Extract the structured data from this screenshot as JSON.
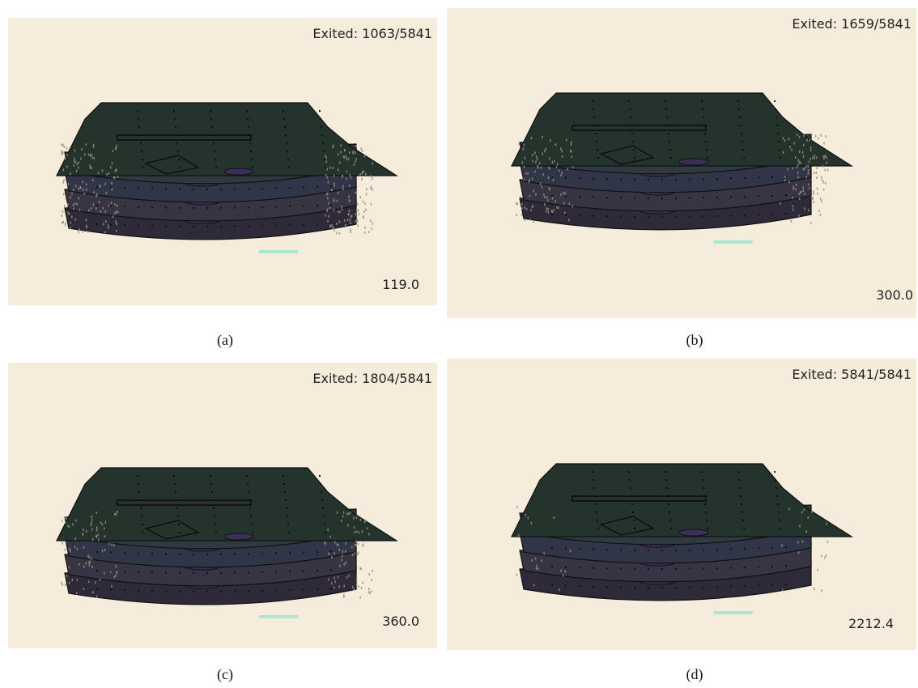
{
  "panels": [
    {
      "id": "a",
      "exited_label": "Exited:",
      "exited_count": "1063/5841",
      "time": "119.0",
      "caption": "(a)"
    },
    {
      "id": "b",
      "exited_label": "Exited:",
      "exited_count": "1659/5841",
      "time": "300.0",
      "caption": "(b)"
    },
    {
      "id": "c",
      "exited_label": "Exited:",
      "exited_count": "1804/5841",
      "time": "360.0",
      "caption": "(c)"
    },
    {
      "id": "d",
      "exited_label": "Exited:",
      "exited_count": "5841/5841",
      "time": "2212.4",
      "caption": "(d)"
    }
  ],
  "colors": {
    "background": "#f6ecdc",
    "deck_top": "#24332c",
    "deck_2": "#2e3a40",
    "deck_3": "#303648",
    "deck_4": "#373443",
    "deck_5": "#2e2a3a",
    "room_purple": "#3b2f5a",
    "exit_cyan": "#a6e8d4",
    "crowd": "#9a8f7c"
  }
}
